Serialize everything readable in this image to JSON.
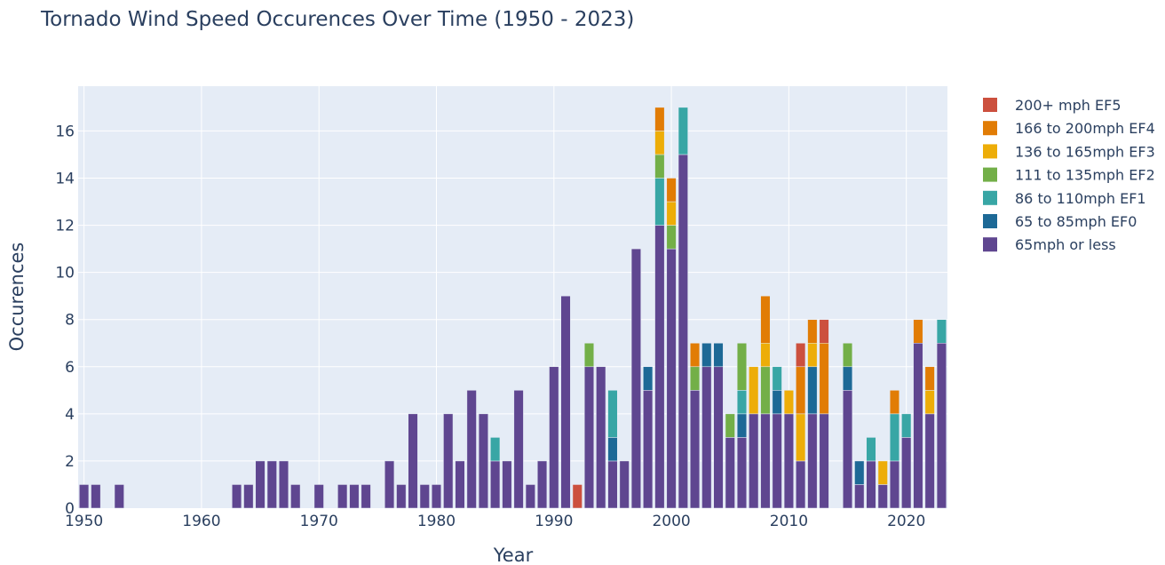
{
  "chart_data": {
    "type": "bar",
    "stacked": true,
    "title": "Tornado Wind Speed Occurences Over Time (1950 - 2023)",
    "xlabel": "Year",
    "ylabel": "Occurences",
    "xlim": [
      1949.5,
      2023.5
    ],
    "ylim": [
      0,
      17.9
    ],
    "x_ticks": [
      1950,
      1960,
      1970,
      1980,
      1990,
      2000,
      2010,
      2020
    ],
    "y_ticks": [
      0,
      2,
      4,
      6,
      8,
      10,
      12,
      14,
      16
    ],
    "grid": true,
    "legend_position": "right",
    "background": "#e5ecf6",
    "x": [
      1950,
      1951,
      1953,
      1963,
      1964,
      1965,
      1966,
      1967,
      1968,
      1970,
      1972,
      1973,
      1974,
      1976,
      1977,
      1978,
      1979,
      1980,
      1981,
      1982,
      1983,
      1984,
      1985,
      1986,
      1987,
      1988,
      1989,
      1990,
      1991,
      1992,
      1993,
      1994,
      1995,
      1996,
      1997,
      1998,
      1999,
      2000,
      2001,
      2002,
      2003,
      2004,
      2005,
      2006,
      2007,
      2008,
      2009,
      2010,
      2011,
      2012,
      2013,
      2015,
      2016,
      2017,
      2018,
      2019,
      2020,
      2021,
      2022,
      2023
    ],
    "series": [
      {
        "name": "65mph or less",
        "color": "#5f4690",
        "values": [
          1,
          1,
          1,
          1,
          1,
          2,
          2,
          2,
          1,
          1,
          1,
          1,
          1,
          2,
          1,
          4,
          1,
          1,
          4,
          2,
          5,
          4,
          2,
          2,
          5,
          1,
          2,
          6,
          9,
          0,
          6,
          6,
          2,
          2,
          11,
          5,
          12,
          11,
          15,
          5,
          6,
          6,
          3,
          3,
          4,
          4,
          4,
          4,
          2,
          4,
          4,
          5,
          1,
          2,
          1,
          2,
          3,
          7,
          4,
          7
        ]
      },
      {
        "name": "65 to 85mph EF0",
        "color": "#1d6996",
        "values": [
          0,
          0,
          0,
          0,
          0,
          0,
          0,
          0,
          0,
          0,
          0,
          0,
          0,
          0,
          0,
          0,
          0,
          0,
          0,
          0,
          0,
          0,
          0,
          0,
          0,
          0,
          0,
          0,
          0,
          0,
          0,
          0,
          1,
          0,
          0,
          1,
          0,
          0,
          0,
          0,
          1,
          1,
          0,
          1,
          0,
          0,
          1,
          0,
          0,
          2,
          0,
          1,
          1,
          0,
          0,
          0,
          0,
          0,
          0,
          0
        ]
      },
      {
        "name": "86 to 110mph EF1",
        "color": "#38a6a5",
        "values": [
          0,
          0,
          0,
          0,
          0,
          0,
          0,
          0,
          0,
          0,
          0,
          0,
          0,
          0,
          0,
          0,
          0,
          0,
          0,
          0,
          0,
          0,
          1,
          0,
          0,
          0,
          0,
          0,
          0,
          0,
          0,
          0,
          2,
          0,
          0,
          0,
          2,
          0,
          2,
          0,
          0,
          0,
          0,
          1,
          0,
          0,
          1,
          0,
          0,
          0,
          0,
          0,
          0,
          1,
          0,
          2,
          1,
          0,
          0,
          1
        ]
      },
      {
        "name": "111 to 135mph EF2",
        "color": "#73af48",
        "values": [
          0,
          0,
          0,
          0,
          0,
          0,
          0,
          0,
          0,
          0,
          0,
          0,
          0,
          0,
          0,
          0,
          0,
          0,
          0,
          0,
          0,
          0,
          0,
          0,
          0,
          0,
          0,
          0,
          0,
          0,
          1,
          0,
          0,
          0,
          0,
          0,
          1,
          1,
          0,
          1,
          0,
          0,
          1,
          2,
          0,
          2,
          0,
          0,
          0,
          0,
          0,
          1,
          0,
          0,
          0,
          0,
          0,
          0,
          0,
          0
        ]
      },
      {
        "name": "136 to 165mph EF3",
        "color": "#edad08",
        "values": [
          0,
          0,
          0,
          0,
          0,
          0,
          0,
          0,
          0,
          0,
          0,
          0,
          0,
          0,
          0,
          0,
          0,
          0,
          0,
          0,
          0,
          0,
          0,
          0,
          0,
          0,
          0,
          0,
          0,
          0,
          0,
          0,
          0,
          0,
          0,
          0,
          1,
          1,
          0,
          0,
          0,
          0,
          0,
          0,
          2,
          1,
          0,
          1,
          2,
          1,
          0,
          0,
          0,
          0,
          1,
          0,
          0,
          0,
          1,
          0
        ]
      },
      {
        "name": "166 to 200mph EF4",
        "color": "#e17c05",
        "values": [
          0,
          0,
          0,
          0,
          0,
          0,
          0,
          0,
          0,
          0,
          0,
          0,
          0,
          0,
          0,
          0,
          0,
          0,
          0,
          0,
          0,
          0,
          0,
          0,
          0,
          0,
          0,
          0,
          0,
          0,
          0,
          0,
          0,
          0,
          0,
          0,
          1,
          1,
          0,
          1,
          0,
          0,
          0,
          0,
          0,
          2,
          0,
          0,
          2,
          1,
          3,
          0,
          0,
          0,
          0,
          1,
          0,
          1,
          1,
          0
        ]
      },
      {
        "name": "200+ mph EF5",
        "color": "#cc503e",
        "values": [
          0,
          0,
          0,
          0,
          0,
          0,
          0,
          0,
          0,
          0,
          0,
          0,
          0,
          0,
          0,
          0,
          0,
          0,
          0,
          0,
          0,
          0,
          0,
          0,
          0,
          0,
          0,
          0,
          0,
          1,
          0,
          0,
          0,
          0,
          0,
          0,
          0,
          0,
          0,
          0,
          0,
          0,
          0,
          0,
          0,
          0,
          0,
          0,
          1,
          0,
          1,
          0,
          0,
          0,
          0,
          0,
          0,
          0,
          0,
          0
        ]
      }
    ],
    "legend_order": [
      "200+ mph EF5",
      "166 to 200mph EF4",
      "136 to 165mph EF3",
      "111 to 135mph EF2",
      "86 to 110mph EF1",
      "65 to 85mph EF0",
      "65mph or less"
    ]
  }
}
